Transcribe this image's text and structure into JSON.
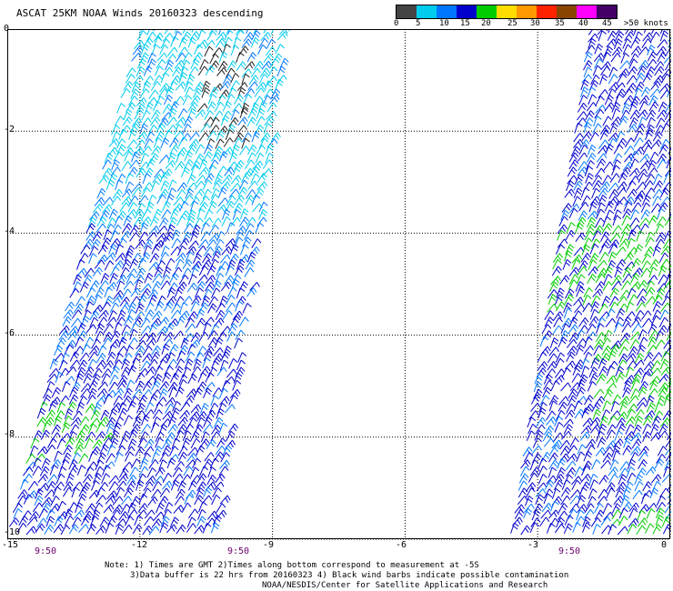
{
  "title": "ASCAT 25KM NOAA Winds 20160323 descending",
  "legend": {
    "labels": [
      "0",
      "5",
      "10",
      "15",
      "20",
      "25",
      "30",
      "35",
      "40",
      "45",
      ">50 knots"
    ],
    "colors": [
      "#444444",
      "#00ccee",
      "#0077ff",
      "#0000cc",
      "#00cc00",
      "#ffdd00",
      "#ff9900",
      "#ff2200",
      "#884400",
      "#ff00ff",
      "#440066"
    ]
  },
  "axes": {
    "x_ticks": [
      "-15",
      "-12",
      "-9",
      "-6",
      "-3",
      "0"
    ],
    "y_ticks": [
      "0",
      "-2",
      "-4",
      "-6",
      "-8",
      "-10"
    ],
    "xlim": [
      -15,
      0
    ],
    "ylim": [
      -10,
      0
    ]
  },
  "pass_times": [
    "9:50",
    "9:50",
    "9:50"
  ],
  "notes": [
    "Note: 1) Times are GMT 2)Times along bottom correspond to measurement at -5S",
    "3)Data buffer is 22 hrs from 20160323 4) Black wind barbs indicate possible contamination",
    "NOAA/NESDIS/Center for Satellite Applications and Research"
  ],
  "swaths": [
    {
      "name": "west-swath",
      "lon_top": [
        -12.0,
        -8.7
      ],
      "lon_bottom": [
        -15.0,
        -10.3
      ]
    },
    {
      "name": "east-swath",
      "lon_top": [
        -1.8,
        0.0
      ],
      "lon_bottom": [
        -3.6,
        0.0
      ]
    }
  ],
  "wind_colors": {
    "cyan": "#00ccee",
    "blue": "#0077ff",
    "navy": "#0000cc",
    "green": "#00cc00",
    "black": "#222222"
  }
}
